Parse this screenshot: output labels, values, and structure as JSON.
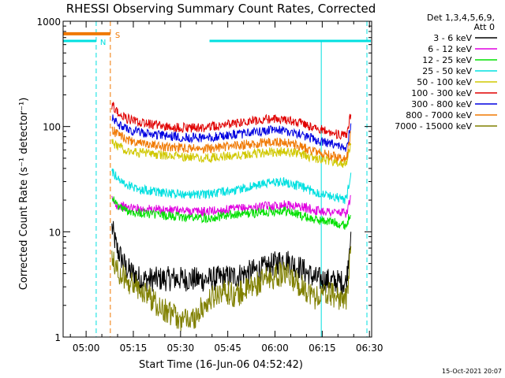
{
  "chart_data": {
    "type": "line",
    "title": "RHESSI Observing Summary Count Rates, Corrected",
    "xlabel": "Start Time (16-Jun-06 04:52:42)",
    "ylabel": "Corrected Count Rate (s⁻¹ detector⁻¹)",
    "y_scale": "log",
    "ylim": [
      1,
      1000
    ],
    "xlim_minutes_after_start": [
      0,
      98
    ],
    "x_ticks": [
      {
        "label": "05:00",
        "t": 7.3
      },
      {
        "label": "05:15",
        "t": 22.3
      },
      {
        "label": "05:30",
        "t": 37.3
      },
      {
        "label": "05:45",
        "t": 52.3
      },
      {
        "label": "06:00",
        "t": 67.3
      },
      {
        "label": "06:15",
        "t": 82.3
      },
      {
        "label": "06:30",
        "t": 97.3
      }
    ],
    "y_ticks": [
      {
        "label": "1",
        "v": 1
      },
      {
        "label": "10",
        "v": 10
      },
      {
        "label": "100",
        "v": 100
      },
      {
        "label": "1000",
        "v": 1000
      }
    ],
    "legend": {
      "placement": "right",
      "header": [
        "Det 1,3,4,5,6,9,",
        "Att 0"
      ],
      "entries": [
        {
          "label": "3 - 6 keV",
          "color": "#000000"
        },
        {
          "label": "6 - 12 keV",
          "color": "#e000e0"
        },
        {
          "label": "12 - 25 keV",
          "color": "#00e000"
        },
        {
          "label": "25 - 50 keV",
          "color": "#00e0e0"
        },
        {
          "label": "50 - 100 keV",
          "color": "#d0c800"
        },
        {
          "label": "100 - 300 keV",
          "color": "#e00000"
        },
        {
          "label": "300 - 800 keV",
          "color": "#0000e0"
        },
        {
          "label": "800 - 7000 keV",
          "color": "#f07800"
        },
        {
          "label": "7000 - 15000 keV",
          "color": "#808000"
        }
      ]
    },
    "flag_bars": [
      {
        "label": "N",
        "color": "#00e0e0",
        "segments": [
          [
            0,
            10.5
          ],
          [
            46.5,
            98
          ]
        ],
        "level": 650,
        "boundaries_dashed": [
          10.5,
          96.5
        ],
        "boundary_solid": 82
      }
    ],
    "flag_bars_s": [
      {
        "label": "S",
        "color": "#f07800",
        "segments": [
          [
            0,
            15
          ]
        ],
        "level": 760,
        "boundary_dashed": 15
      }
    ],
    "series": [
      {
        "name": "3 - 6 keV",
        "color": "#000000",
        "x": [
          15.5,
          17,
          20,
          25,
          35,
          45,
          55,
          65,
          70,
          75,
          80,
          85,
          90,
          91.5
        ],
        "y": [
          11,
          7,
          4.5,
          3.5,
          3.6,
          3.5,
          3.8,
          4.6,
          5.5,
          4.6,
          3.6,
          3.4,
          3.3,
          12
        ]
      },
      {
        "name": "6 - 12 keV",
        "color": "#e000e0",
        "x": [
          15.5,
          17,
          20,
          25,
          35,
          45,
          55,
          65,
          70,
          75,
          80,
          85,
          90,
          91.5
        ],
        "y": [
          20,
          18,
          17,
          16.5,
          16,
          15.5,
          16.5,
          17.5,
          18,
          17.5,
          16,
          15.5,
          15,
          22
        ]
      },
      {
        "name": "12 - 25 keV",
        "color": "#00e000",
        "x": [
          15.5,
          17,
          20,
          25,
          35,
          45,
          55,
          65,
          70,
          75,
          80,
          85,
          90,
          91.5
        ],
        "y": [
          22,
          18,
          16,
          15,
          14,
          13.5,
          14.5,
          15.5,
          16,
          14.5,
          13,
          12.5,
          11.5,
          16
        ]
      },
      {
        "name": "25 - 50 keV",
        "color": "#00e0e0",
        "x": [
          15.5,
          17,
          20,
          25,
          35,
          45,
          55,
          65,
          70,
          75,
          80,
          85,
          90,
          91.5
        ],
        "y": [
          38,
          33,
          28,
          25,
          23,
          22.5,
          25,
          29,
          30,
          27,
          24,
          22,
          20,
          40
        ]
      },
      {
        "name": "50 - 100 keV",
        "color": "#d0c800",
        "x": [
          15.5,
          17,
          20,
          25,
          35,
          45,
          55,
          65,
          70,
          75,
          80,
          85,
          90,
          91.5
        ],
        "y": [
          72,
          66,
          60,
          56,
          52,
          50,
          53,
          57,
          58,
          55,
          50,
          47,
          44,
          75
        ]
      },
      {
        "name": "100 - 300 keV",
        "color": "#e00000",
        "x": [
          15.5,
          17,
          20,
          25,
          35,
          45,
          55,
          65,
          70,
          75,
          80,
          85,
          90,
          91.5
        ],
        "y": [
          160,
          140,
          120,
          108,
          98,
          97,
          108,
          118,
          117,
          110,
          97,
          88,
          80,
          140
        ]
      },
      {
        "name": "300 - 800 keV",
        "color": "#0000e0",
        "x": [
          15.5,
          17,
          20,
          25,
          35,
          45,
          55,
          65,
          70,
          75,
          80,
          85,
          90,
          91.5
        ],
        "y": [
          120,
          108,
          95,
          87,
          80,
          78,
          84,
          92,
          92,
          85,
          75,
          68,
          62,
          110
        ]
      },
      {
        "name": "800 - 7000 keV",
        "color": "#f07800",
        "x": [
          15.5,
          17,
          20,
          25,
          35,
          45,
          55,
          65,
          70,
          75,
          80,
          85,
          90,
          91.5
        ],
        "y": [
          95,
          85,
          75,
          68,
          63,
          61,
          66,
          71,
          71,
          66,
          58,
          53,
          48,
          90
        ]
      },
      {
        "name": "7000 - 15000 keV",
        "color": "#808000",
        "x": [
          15.5,
          17,
          20,
          25,
          30,
          35,
          40,
          45,
          50,
          55,
          60,
          65,
          70,
          75,
          80,
          85,
          90,
          91.5
        ],
        "y": [
          5.5,
          4.5,
          3.5,
          2.8,
          2.0,
          1.6,
          1.4,
          2.0,
          2.8,
          2.5,
          3.0,
          3.6,
          4.0,
          3.2,
          2.4,
          2.6,
          2.2,
          8
        ]
      }
    ]
  },
  "footer": {
    "timestamp": "15-Oct-2021 20:07"
  }
}
